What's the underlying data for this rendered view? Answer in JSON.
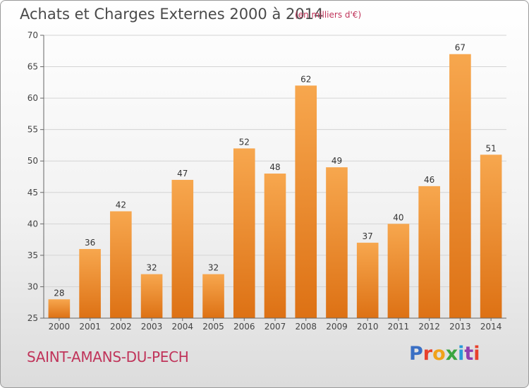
{
  "header": {
    "title": "Achats et Charges Externes 2000 à 2014",
    "units": "(en milliers d'€)"
  },
  "footer": {
    "town": "SAINT-AMANS-DU-PECH",
    "logo": "Proxiti"
  },
  "colors": {
    "bar_top": "#f7a74e",
    "bar_bottom": "#dd7114",
    "title": "#4a4a4a",
    "accent": "#c0345a"
  },
  "chart_data": {
    "type": "bar",
    "title": "Achats et Charges Externes 2000 à 2014",
    "subtitle": "(en milliers d'€)",
    "xlabel": "",
    "ylabel": "",
    "categories": [
      "2000",
      "2001",
      "2002",
      "2003",
      "2004",
      "2005",
      "2006",
      "2007",
      "2008",
      "2009",
      "2010",
      "2011",
      "2012",
      "2013",
      "2014"
    ],
    "values": [
      28,
      36,
      42,
      32,
      47,
      32,
      52,
      48,
      62,
      49,
      37,
      40,
      46,
      67,
      51
    ],
    "ylim": [
      25,
      70
    ],
    "yticks": [
      25,
      30,
      35,
      40,
      45,
      50,
      55,
      60,
      65,
      70
    ],
    "grid": true,
    "data_labels": true
  }
}
